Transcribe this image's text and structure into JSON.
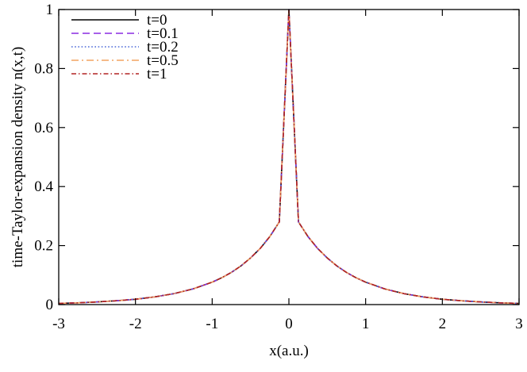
{
  "chart_data": {
    "type": "line",
    "xlabel": "x(a.u.)",
    "ylabel": "time-Taylor-expansion density n(x,t)",
    "xlim": [
      -3,
      3
    ],
    "ylim": [
      0,
      1
    ],
    "x_ticks": [
      -3,
      -2,
      -1,
      0,
      1,
      2,
      3
    ],
    "x_tick_labels": [
      "-3",
      "-2",
      "-1",
      "0",
      "1",
      "2",
      "3"
    ],
    "y_ticks": [
      0,
      0.2,
      0.4,
      0.6,
      0.8,
      1
    ],
    "y_tick_labels": [
      "0",
      "0.2",
      "0.4",
      "0.6",
      "0.8",
      "1"
    ],
    "legend_position": "top-left",
    "grid": false,
    "x": [
      -3,
      -2.75,
      -2.5,
      -2.25,
      -2,
      -1.75,
      -1.5,
      -1.25,
      -1,
      -0.875,
      -0.75,
      -0.625,
      -0.5,
      -0.375,
      -0.25,
      -0.125,
      0,
      0.125,
      0.25,
      0.375,
      0.5,
      0.625,
      0.75,
      0.875,
      1,
      1.25,
      1.5,
      1.75,
      2,
      2.25,
      2.5,
      2.75,
      3
    ],
    "series": [
      {
        "name": "t=0",
        "color": "#000000",
        "dash": "solid",
        "values": [
          0.004,
          0.006,
          0.009,
          0.013,
          0.018,
          0.026,
          0.037,
          0.053,
          0.076,
          0.091,
          0.109,
          0.131,
          0.158,
          0.19,
          0.23,
          0.28,
          1.0,
          0.28,
          0.23,
          0.19,
          0.158,
          0.131,
          0.109,
          0.091,
          0.076,
          0.053,
          0.037,
          0.026,
          0.018,
          0.013,
          0.009,
          0.006,
          0.004
        ]
      },
      {
        "name": "t=0.1",
        "color": "#8a2be2",
        "dash": "dashed",
        "values": [
          0.004,
          0.006,
          0.009,
          0.013,
          0.018,
          0.026,
          0.037,
          0.053,
          0.076,
          0.091,
          0.109,
          0.131,
          0.158,
          0.19,
          0.23,
          0.28,
          1.0,
          0.28,
          0.23,
          0.19,
          0.158,
          0.131,
          0.109,
          0.091,
          0.076,
          0.053,
          0.037,
          0.026,
          0.018,
          0.013,
          0.009,
          0.006,
          0.004
        ]
      },
      {
        "name": "t=0.2",
        "color": "#4a68d8",
        "dash": "dotted",
        "values": [
          0.004,
          0.006,
          0.009,
          0.013,
          0.018,
          0.026,
          0.037,
          0.053,
          0.076,
          0.091,
          0.109,
          0.131,
          0.158,
          0.19,
          0.23,
          0.28,
          1.0,
          0.28,
          0.23,
          0.19,
          0.158,
          0.131,
          0.109,
          0.091,
          0.076,
          0.053,
          0.037,
          0.026,
          0.018,
          0.013,
          0.009,
          0.006,
          0.004
        ]
      },
      {
        "name": "t=0.5",
        "color": "#f4a460",
        "dash": "dashdot",
        "values": [
          0.004,
          0.006,
          0.009,
          0.013,
          0.018,
          0.026,
          0.037,
          0.053,
          0.076,
          0.091,
          0.109,
          0.131,
          0.158,
          0.19,
          0.23,
          0.28,
          1.0,
          0.28,
          0.23,
          0.19,
          0.158,
          0.131,
          0.109,
          0.091,
          0.076,
          0.053,
          0.037,
          0.026,
          0.018,
          0.013,
          0.009,
          0.006,
          0.004
        ]
      },
      {
        "name": "t=1",
        "color": "#b22222",
        "dash": "dashdot-fine",
        "values": [
          0.004,
          0.006,
          0.009,
          0.013,
          0.018,
          0.026,
          0.037,
          0.053,
          0.076,
          0.091,
          0.109,
          0.131,
          0.158,
          0.19,
          0.23,
          0.28,
          1.0,
          0.28,
          0.23,
          0.19,
          0.158,
          0.131,
          0.109,
          0.091,
          0.076,
          0.053,
          0.037,
          0.026,
          0.018,
          0.013,
          0.009,
          0.006,
          0.004
        ]
      }
    ]
  }
}
